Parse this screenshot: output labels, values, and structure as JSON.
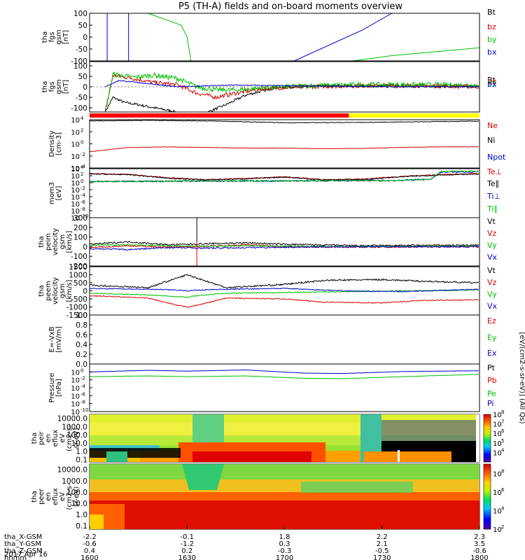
{
  "title": "P5 (TH-A) fields and on-board moments overview",
  "chart_data": [
    {
      "id": "fgs",
      "type": "line",
      "ylabel": [
        "tha",
        "fgs",
        "gsm",
        "[nT]"
      ],
      "ylim": [
        -100,
        100
      ],
      "yticks": [
        "100",
        "50",
        "0",
        "-50",
        "-100"
      ],
      "series": [
        {
          "name": "Bt",
          "color": "#000000",
          "x": [],
          "y": []
        },
        {
          "name": "bz",
          "color": "#d40000",
          "x": [],
          "y": []
        },
        {
          "name": "by",
          "color": "#00c000",
          "x": [
            16.3,
            16.47,
            16.5,
            16.52,
            17.35,
            17.55,
            18.0
          ],
          "y": [
            100,
            50,
            0,
            -100,
            -100,
            -78,
            -45
          ]
        },
        {
          "name": "bx",
          "color": "#0000c8",
          "x": [
            16.09,
            16.09,
            16.2,
            16.2,
            17.05,
            17.4,
            17.55
          ],
          "y": [
            -100,
            100,
            100,
            -100,
            -100,
            30,
            100
          ]
        }
      ]
    },
    {
      "id": "fgs2",
      "type": "line",
      "ylabel": [
        "tha",
        "fgs",
        "gsm",
        "[nT]"
      ],
      "ylim": [
        -120,
        120
      ],
      "yticks": [
        "100",
        "50",
        "0",
        "-50",
        "-100"
      ],
      "series": [
        {
          "name": "Bt",
          "color": "#000000",
          "x": [
            16.08,
            16.12,
            16.18,
            16.25,
            16.33,
            16.42,
            16.55,
            16.62,
            16.7,
            16.8,
            16.95,
            17.2,
            17.6,
            18.0
          ],
          "y": [
            -120,
            -50,
            -75,
            -85,
            -100,
            -115,
            -150,
            -115,
            -85,
            -40,
            -5,
            5,
            5,
            2
          ],
          "noise": 6
        },
        {
          "name": "bz",
          "color": "#d40000",
          "x": [
            16.08,
            16.12,
            16.22,
            16.33,
            16.45,
            16.55,
            16.65,
            16.75,
            16.9,
            17.1,
            17.4,
            17.7,
            18.0
          ],
          "y": [
            -120,
            55,
            40,
            20,
            10,
            -30,
            -50,
            -30,
            -8,
            0,
            5,
            5,
            0
          ],
          "noise": 10
        },
        {
          "name": "by",
          "color": "#00c000",
          "x": [
            16.08,
            16.12,
            16.22,
            16.33,
            16.45,
            16.55,
            16.65,
            16.75,
            16.9,
            17.1,
            17.4,
            17.7,
            18.0
          ],
          "y": [
            -120,
            60,
            45,
            55,
            40,
            0,
            -15,
            -15,
            -5,
            5,
            10,
            10,
            8
          ],
          "noise": 12
        },
        {
          "name": "bx",
          "color": "#0000c8",
          "x": [
            16.08,
            16.15,
            16.3,
            16.45,
            16.6,
            16.75,
            17.0,
            17.3,
            17.6,
            18.0
          ],
          "y": [
            0,
            30,
            15,
            0,
            5,
            8,
            5,
            2,
            0,
            0
          ],
          "noise": 2
        }
      ],
      "status_bar": [
        {
          "from": 16.0,
          "to": 17.33,
          "color": "#ff0000"
        },
        {
          "from": 17.33,
          "to": 18.0,
          "color": "#ffff00"
        }
      ]
    },
    {
      "id": "density",
      "type": "line",
      "yscale": "log",
      "ylabel": [
        "Density",
        "[cm-3]"
      ],
      "ylim": [
        -4,
        4
      ],
      "ytick_exp": [
        -4,
        -2,
        0,
        2,
        4
      ],
      "series": [
        {
          "name": "Ne",
          "color": "#d40000",
          "x": [
            16.0,
            16.2,
            16.4,
            16.6,
            16.8,
            17.0,
            17.2,
            17.4,
            17.6,
            17.8,
            18.0
          ],
          "y": [
            -1.3,
            -0.6,
            -0.5,
            -0.6,
            -0.7,
            -0.7,
            -0.8,
            -0.75,
            -0.6,
            -0.5,
            -0.5
          ],
          "noise": 0.04
        },
        {
          "name": "Ni",
          "color": "#000000",
          "x": [
            16.0,
            16.3,
            16.6,
            17.0,
            17.4,
            17.8,
            18.0
          ],
          "y": [
            3.8,
            3.9,
            3.8,
            3.5,
            3.55,
            3.7,
            3.75
          ],
          "noise": 0.05
        },
        {
          "name": "Npot",
          "color": "#0000c8",
          "x": [],
          "y": []
        }
      ]
    },
    {
      "id": "mom",
      "type": "line",
      "yscale": "log",
      "ylabel": [
        "mom3",
        "[eV]"
      ],
      "ylim": [
        -10,
        4
      ],
      "ytick_exp": [
        -10,
        -8,
        -6,
        -4,
        -2,
        0,
        2,
        4
      ],
      "series": [
        {
          "name": "Te⊥",
          "color": "#d40000",
          "x": [
            16.0,
            16.2,
            16.4,
            16.6,
            16.8,
            17.0,
            17.2,
            17.4,
            17.6,
            17.8,
            18.0
          ],
          "y": [
            2.6,
            2.4,
            1.4,
            0.9,
            1.2,
            1.7,
            0.9,
            1.0,
            1.8,
            2.3,
            2.6
          ],
          "noise": 0.15
        },
        {
          "name": "Te∥",
          "color": "#000000",
          "x": [
            16.0,
            16.2,
            16.4,
            16.6,
            16.8,
            17.0,
            17.2,
            17.4,
            17.6,
            17.8,
            18.0
          ],
          "y": [
            2.5,
            2.3,
            1.3,
            0.8,
            1.1,
            1.6,
            0.8,
            0.9,
            1.7,
            2.2,
            2.5
          ],
          "noise": 0.15
        },
        {
          "name": "Ti⊥",
          "color": "#0000c8",
          "x": [
            16.0,
            16.3,
            16.6,
            17.0,
            17.4,
            17.55,
            17.75,
            17.8,
            18.0
          ],
          "y": [
            0.3,
            0.4,
            0.5,
            0.5,
            0.6,
            0.6,
            1.0,
            3.0,
            3.1
          ],
          "noise": 0.2
        },
        {
          "name": "Ti∥",
          "color": "#00c000",
          "x": [
            16.0,
            16.3,
            16.6,
            17.0,
            17.4,
            17.55,
            17.75,
            17.8,
            18.0
          ],
          "y": [
            0.3,
            0.4,
            0.5,
            0.5,
            0.6,
            0.6,
            1.0,
            3.2,
            3.3
          ],
          "noise": 0.2
        }
      ]
    },
    {
      "id": "peim",
      "type": "line",
      "ylabel": [
        "tha",
        "peim",
        "velocity",
        "gsm",
        "[km/s]"
      ],
      "ylim": [
        -200,
        300
      ],
      "yticks": [
        "300",
        "200",
        "100",
        "0",
        "-100",
        "-200"
      ],
      "series": [
        {
          "name": "Vt",
          "color": "#000000",
          "x": [
            16.0,
            16.2,
            16.4,
            16.6,
            16.8,
            17.0,
            17.4,
            17.8,
            18.0
          ],
          "y": [
            25,
            50,
            20,
            30,
            40,
            25,
            10,
            15,
            15
          ],
          "noise": 8
        },
        {
          "name": "Vz",
          "color": "#d40000",
          "x": [
            16.0,
            16.2,
            16.4,
            16.6,
            16.8,
            17.0,
            17.4,
            17.8,
            18.0
          ],
          "y": [
            -10,
            10,
            -5,
            5,
            20,
            0,
            -5,
            0,
            0
          ],
          "noise": 8
        },
        {
          "name": "Vy",
          "color": "#00c000",
          "x": [
            16.0,
            16.2,
            16.4,
            16.6,
            16.8,
            17.0,
            17.4,
            17.8,
            18.0
          ],
          "y": [
            15,
            20,
            10,
            5,
            10,
            5,
            0,
            5,
            5
          ],
          "noise": 6
        },
        {
          "name": "Vx",
          "color": "#0000c8",
          "x": [
            16.0,
            16.2,
            16.4,
            16.6,
            16.8,
            17.0,
            17.4,
            17.8,
            18.0
          ],
          "y": [
            -20,
            -30,
            -10,
            -15,
            -10,
            -5,
            0,
            0,
            0
          ],
          "noise": 8
        }
      ]
    },
    {
      "id": "peem",
      "type": "line",
      "ylabel": [
        "tha",
        "peem",
        "velocity",
        "gsm",
        "[km/s]"
      ],
      "ylim": [
        -1500,
        1500
      ],
      "yticks": [
        "1500",
        "1000",
        "500",
        "0",
        "-500",
        "-1000",
        "-1500"
      ],
      "series": [
        {
          "name": "Vt",
          "color": "#000000",
          "x": [
            16.0,
            16.3,
            16.45,
            16.5,
            16.55,
            16.7,
            17.0,
            17.2,
            17.5,
            17.7,
            18.0
          ],
          "y": [
            350,
            200,
            800,
            1000,
            800,
            200,
            400,
            650,
            700,
            600,
            500
          ],
          "noise": 50
        },
        {
          "name": "Vz",
          "color": "#d40000",
          "x": [
            16.0,
            16.3,
            16.45,
            16.5,
            16.55,
            16.7,
            17.0,
            17.2,
            17.5,
            17.7,
            18.0
          ],
          "y": [
            -300,
            -450,
            -900,
            -1000,
            -900,
            -450,
            -500,
            -700,
            -750,
            -600,
            -550
          ],
          "noise": 30
        },
        {
          "name": "Vy",
          "color": "#00c000",
          "x": [
            16.0,
            16.3,
            16.45,
            16.5,
            16.55,
            16.7,
            17.0,
            17.3,
            17.6,
            18.0
          ],
          "y": [
            -150,
            -250,
            -350,
            -400,
            -300,
            -150,
            -100,
            -50,
            0,
            50
          ],
          "noise": 30
        },
        {
          "name": "Vx",
          "color": "#0000c8",
          "x": [
            16.0,
            16.3,
            16.45,
            16.5,
            16.55,
            16.7,
            17.0,
            17.3,
            17.6,
            18.0
          ],
          "y": [
            150,
            100,
            50,
            0,
            50,
            100,
            150,
            0,
            -50,
            100
          ],
          "noise": 30
        }
      ]
    },
    {
      "id": "efield",
      "type": "line",
      "ylabel": [
        "E=-VxB",
        "[mV/m]"
      ],
      "ylim": [
        0,
        1
      ],
      "yticks": [
        "1.0",
        "0.8",
        "0.6",
        "0.4",
        "0.2",
        "0.0"
      ],
      "series": [
        {
          "name": "Ez",
          "color": "#d40000",
          "x": [],
          "y": []
        },
        {
          "name": "Ey",
          "color": "#00c000",
          "x": [],
          "y": []
        },
        {
          "name": "Ex",
          "color": "#0000c8",
          "x": [],
          "y": []
        }
      ]
    },
    {
      "id": "pressure",
      "type": "line",
      "yscale": "log",
      "ylabel": [
        "Pressure",
        "[nPa]"
      ],
      "ylim": [
        -10,
        2
      ],
      "ytick_exp": [
        -10,
        -8,
        -6,
        -4,
        -2,
        0
      ],
      "series": [
        {
          "name": "Pt",
          "color": "#000000",
          "x": [],
          "y": []
        },
        {
          "name": "Pb",
          "color": "#d40000",
          "x": [],
          "y": []
        },
        {
          "name": "Pe",
          "color": "#00c000",
          "x": [
            16.0,
            16.3,
            16.5,
            16.8,
            17.1,
            17.3,
            17.6,
            18.0
          ],
          "y": [
            -1.2,
            -1.0,
            -1.2,
            -1.0,
            -1.6,
            -1.7,
            -1.2,
            -0.6
          ],
          "noise": 0.02
        },
        {
          "name": "Pi",
          "color": "#0000c8",
          "x": [
            16.0,
            16.3,
            16.5,
            16.8,
            17.1,
            17.3,
            17.6,
            18.0
          ],
          "y": [
            0.0,
            0.4,
            0.2,
            0.5,
            -0.3,
            -0.4,
            0.1,
            0.3
          ],
          "noise": 0.02
        }
      ]
    },
    {
      "id": "peir_spec",
      "type": "heatmap",
      "ylabel": [
        "tha",
        "peir",
        "en",
        "eflux",
        "eV",
        "(cm2-s-",
        "sr-eV)"
      ],
      "yscale": "log",
      "ylim": [
        0.05,
        30000
      ],
      "yticks": [
        "10000.0",
        "1000.0",
        "100.0",
        "10.0",
        "1.0",
        "0.1"
      ],
      "colorbar": {
        "label": "[eV/(cm2-s-sr-eV)] (All Qs)",
        "ticks": [
          "10",
          "10",
          "10",
          "10",
          "10"
        ],
        "tick_exp": [
          "8",
          "7",
          "6",
          "5",
          "4"
        ],
        "range_exp": [
          3,
          8
        ]
      }
    },
    {
      "id": "peer_spec",
      "type": "heatmap",
      "ylabel": [
        "tha",
        "peer",
        "en",
        "eflux",
        "eV",
        "(cm2-s-",
        "sr-eV)"
      ],
      "yscale": "log",
      "ylim": [
        0.05,
        30000
      ],
      "yticks": [
        "10000.0",
        "1000.0",
        "100.0",
        "10.0",
        "1.0",
        "0.1"
      ],
      "colorbar": {
        "ticks": [
          "10",
          "10",
          "10",
          "10"
        ],
        "tick_exp": [
          "8",
          "6",
          "4",
          "2"
        ],
        "range_exp": [
          2,
          9
        ]
      }
    }
  ],
  "xaxis": {
    "range_hours": [
      16.0,
      18.0
    ],
    "tick_hours": [
      16.0,
      16.5,
      17.0,
      17.5,
      18.0
    ],
    "rows": [
      {
        "label": "tha_X-GSM",
        "values": [
          "-2.2",
          "-0.1",
          "1.8",
          "2.2",
          "2.3"
        ]
      },
      {
        "label": "tha_Y-GSM",
        "values": [
          "-0.6",
          "-1.2",
          "0.3",
          "2.1",
          "3.5"
        ]
      },
      {
        "label": "tha_Z-GSM",
        "values": [
          "0.4",
          "0.2",
          "-0.3",
          "-0.5",
          "-0.6"
        ]
      },
      {
        "label": "hhmm",
        "values": [
          "1600",
          "1630",
          "1700",
          "1730",
          "1800"
        ]
      }
    ],
    "date": "2017 Apr 16"
  }
}
